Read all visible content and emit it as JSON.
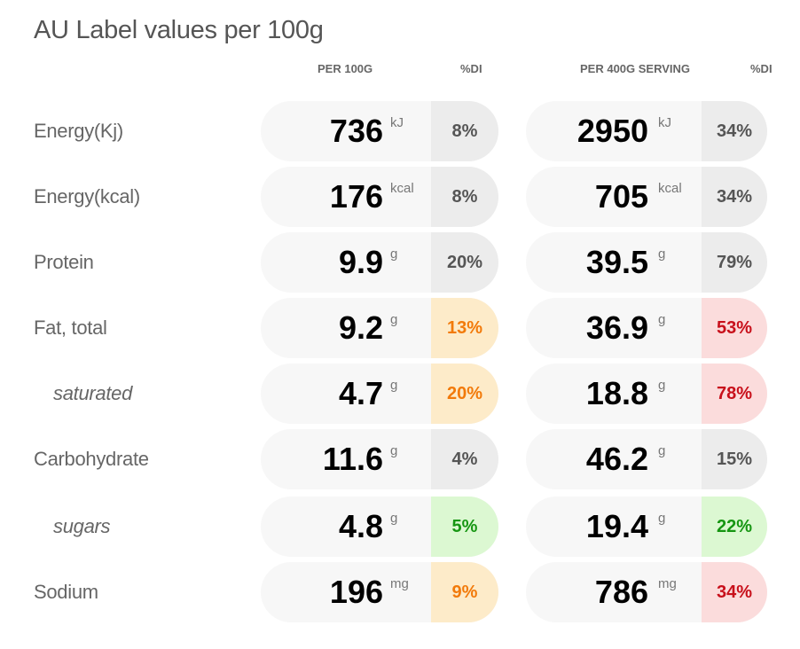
{
  "title": "AU Label values per 100g",
  "headers": {
    "per100": "PER 100G",
    "di1": "%DI",
    "serving": "PER 400G SERVING",
    "di2": "%DI"
  },
  "colors": {
    "neutral_bg": "#ececec",
    "orange_text": "#f27a0a",
    "orange_bg": "#fdebc9",
    "red_text": "#c8101b",
    "red_bg": "#fbdcdc",
    "green_text": "#169612",
    "green_bg": "#dcf8d2"
  },
  "rows": [
    {
      "label": "Energy(Kj)",
      "sub": false,
      "per100": {
        "value": "736",
        "unit": "kJ",
        "di": "8%",
        "level": "neutral"
      },
      "serving": {
        "value": "2950",
        "unit": "kJ",
        "di": "34%",
        "level": "neutral"
      }
    },
    {
      "label": "Energy(kcal)",
      "sub": false,
      "per100": {
        "value": "176",
        "unit": "kcal",
        "di": "8%",
        "level": "neutral"
      },
      "serving": {
        "value": "705",
        "unit": "kcal",
        "di": "34%",
        "level": "neutral"
      }
    },
    {
      "label": "Protein",
      "sub": false,
      "per100": {
        "value": "9.9",
        "unit": "g",
        "di": "20%",
        "level": "neutral"
      },
      "serving": {
        "value": "39.5",
        "unit": "g",
        "di": "79%",
        "level": "neutral"
      }
    },
    {
      "label": "Fat, total",
      "sub": false,
      "per100": {
        "value": "9.2",
        "unit": "g",
        "di": "13%",
        "level": "orange"
      },
      "serving": {
        "value": "36.9",
        "unit": "g",
        "di": "53%",
        "level": "red"
      }
    },
    {
      "label": "saturated",
      "sub": true,
      "per100": {
        "value": "4.7",
        "unit": "g",
        "di": "20%",
        "level": "orange"
      },
      "serving": {
        "value": "18.8",
        "unit": "g",
        "di": "78%",
        "level": "red"
      }
    },
    {
      "label": "Carbohydrate",
      "sub": false,
      "per100": {
        "value": "11.6",
        "unit": "g",
        "di": "4%",
        "level": "neutral"
      },
      "serving": {
        "value": "46.2",
        "unit": "g",
        "di": "15%",
        "level": "neutral"
      }
    },
    {
      "label": "sugars",
      "sub": true,
      "per100": {
        "value": "4.8",
        "unit": "g",
        "di": "5%",
        "level": "green"
      },
      "serving": {
        "value": "19.4",
        "unit": "g",
        "di": "22%",
        "level": "green"
      }
    },
    {
      "label": "Sodium",
      "sub": false,
      "per100": {
        "value": "196",
        "unit": "mg",
        "di": "9%",
        "level": "orange"
      },
      "serving": {
        "value": "786",
        "unit": "mg",
        "di": "34%",
        "level": "red"
      }
    }
  ]
}
